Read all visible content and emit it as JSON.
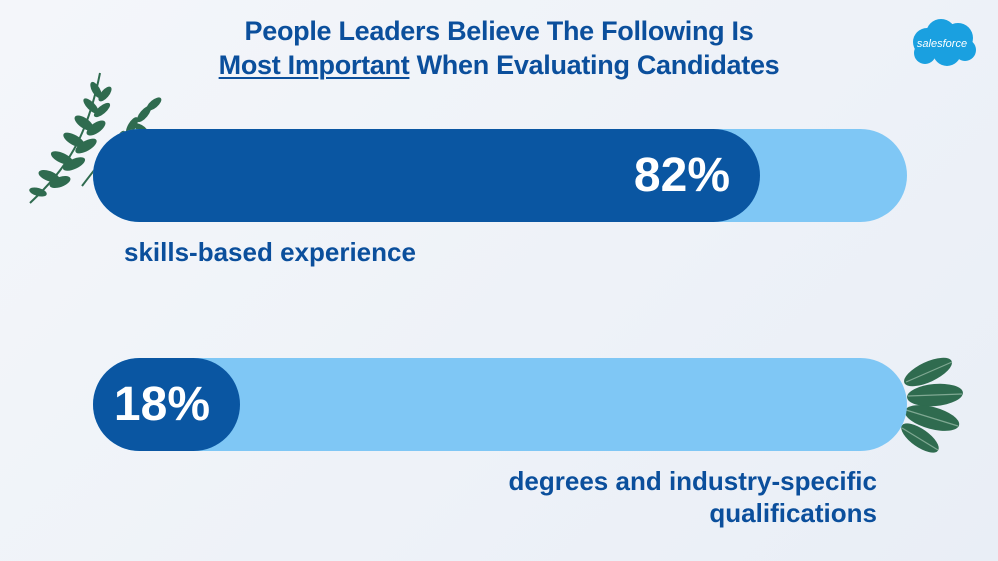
{
  "title": {
    "line1": "People Leaders Believe The Following Is",
    "line2_emphasis": "Most Important",
    "line2_rest": " When Evaluating Candidates"
  },
  "logo": {
    "text": "salesforce"
  },
  "colors": {
    "title": "#0b4f9c",
    "bar_fill": "#0a56a2",
    "bar_track": "#7fc7f5",
    "logo": "#1aa0e0",
    "leaves": "#2f6b4f"
  },
  "icons": [
    "salesforce-cloud-logo",
    "leaf-left-decoration",
    "leaf-right-decoration"
  ],
  "chart_data": {
    "type": "bar",
    "orientation": "horizontal",
    "categories": [
      "skills-based experience",
      "degrees and industry-specific qualifications"
    ],
    "category_lines": [
      [
        "skills-based experience"
      ],
      [
        "degrees and industry-specific",
        "qualifications"
      ]
    ],
    "values": [
      82,
      18
    ],
    "labels": [
      "82%",
      "18%"
    ],
    "unit": "%",
    "xlim": [
      0,
      100
    ],
    "title": "People Leaders Believe The Following Is Most Important When Evaluating Candidates"
  }
}
